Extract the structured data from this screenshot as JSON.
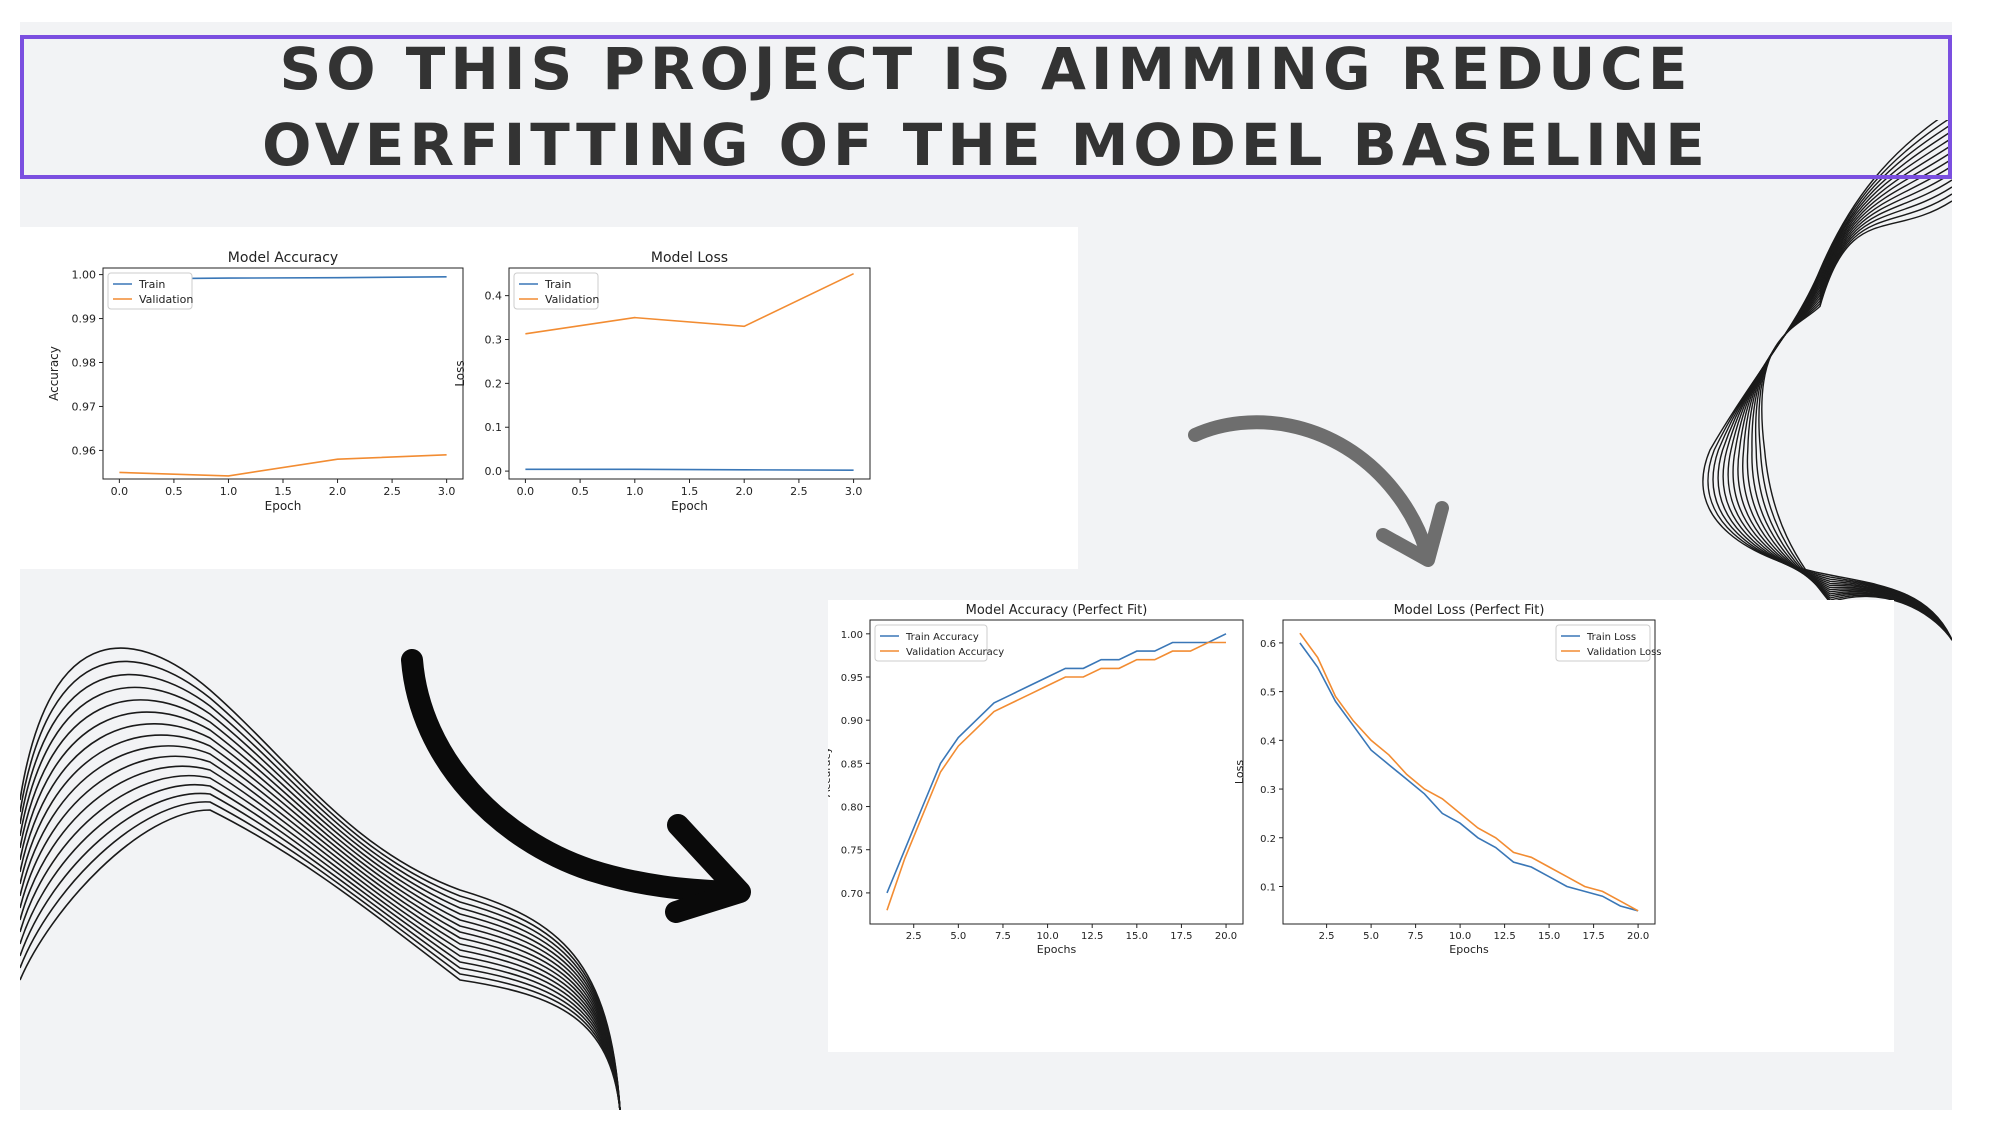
{
  "slide": {
    "title": "SO THIS PROJECT IS AIMMING REDUCE OVERFITTING OF THE MODEL BASELINE",
    "colors": {
      "accent_border": "#7b4fe0",
      "background": "#f2f3f5",
      "title_text": "#333333"
    }
  },
  "decorations": {
    "arrow_right_top": "curved-arrow-gray-icon",
    "arrow_left_bottom": "curved-arrow-black-icon",
    "wave_lines_right": "wave-lines-decoration",
    "wave_lines_left": "wave-lines-decoration"
  },
  "chart_data": [
    {
      "type": "line",
      "title": "Model Accuracy",
      "xlabel": "Epoch",
      "ylabel": "Accuracy",
      "xlim": [
        -0.15,
        3.15
      ],
      "ylim": [
        0.9535,
        1.0015
      ],
      "xticks": [
        0.0,
        0.5,
        1.0,
        1.5,
        2.0,
        2.5,
        3.0
      ],
      "xtick_labels": [
        "0.0",
        "0.5",
        "1.0",
        "1.5",
        "2.0",
        "2.5",
        "3.0"
      ],
      "yticks": [
        0.96,
        0.97,
        0.98,
        0.99,
        1.0
      ],
      "ytick_labels": [
        "0.96",
        "0.97",
        "0.98",
        "0.99",
        "1.00"
      ],
      "legend_position": "top-left",
      "grid": false,
      "series": [
        {
          "name": "Train",
          "color": "#3a77b7",
          "x": [
            0,
            1,
            2,
            3
          ],
          "values": [
            0.999,
            0.9992,
            0.9993,
            0.9995
          ]
        },
        {
          "name": "Validation",
          "color": "#f28c32",
          "x": [
            0,
            1,
            2,
            3
          ],
          "values": [
            0.955,
            0.9542,
            0.958,
            0.959
          ]
        }
      ]
    },
    {
      "type": "line",
      "title": "Model Loss",
      "xlabel": "Epoch",
      "ylabel": "Loss",
      "xlim": [
        -0.15,
        3.15
      ],
      "ylim": [
        -0.018,
        0.463
      ],
      "xticks": [
        0.0,
        0.5,
        1.0,
        1.5,
        2.0,
        2.5,
        3.0
      ],
      "xtick_labels": [
        "0.0",
        "0.5",
        "1.0",
        "1.5",
        "2.0",
        "2.5",
        "3.0"
      ],
      "yticks": [
        0.0,
        0.1,
        0.2,
        0.3,
        0.4
      ],
      "ytick_labels": [
        "0.0",
        "0.1",
        "0.2",
        "0.3",
        "0.4"
      ],
      "legend_position": "top-left",
      "grid": false,
      "series": [
        {
          "name": "Train",
          "color": "#3a77b7",
          "x": [
            0,
            1,
            2,
            3
          ],
          "values": [
            0.004,
            0.004,
            0.003,
            0.002
          ]
        },
        {
          "name": "Validation",
          "color": "#f28c32",
          "x": [
            0,
            1,
            2,
            3
          ],
          "values": [
            0.313,
            0.35,
            0.33,
            0.45
          ]
        }
      ]
    },
    {
      "type": "line",
      "title": "Model Accuracy (Perfect Fit)",
      "xlabel": "Epochs",
      "ylabel": "Accuracy",
      "xlim": [
        0.05,
        20.95
      ],
      "ylim": [
        0.664,
        1.016
      ],
      "xticks": [
        2.5,
        5.0,
        7.5,
        10.0,
        12.5,
        15.0,
        17.5,
        20.0
      ],
      "xtick_labels": [
        "2.5",
        "5.0",
        "7.5",
        "10.0",
        "12.5",
        "15.0",
        "17.5",
        "20.0"
      ],
      "yticks": [
        0.7,
        0.75,
        0.8,
        0.85,
        0.9,
        0.95,
        1.0
      ],
      "ytick_labels": [
        "0.70",
        "0.75",
        "0.80",
        "0.85",
        "0.90",
        "0.95",
        "1.00"
      ],
      "legend_position": "top-left",
      "grid": false,
      "series": [
        {
          "name": "Train Accuracy",
          "color": "#3a77b7",
          "x": [
            1,
            2,
            3,
            4,
            5,
            6,
            7,
            8,
            9,
            10,
            11,
            12,
            13,
            14,
            15,
            16,
            17,
            18,
            19,
            20
          ],
          "values": [
            0.7,
            0.75,
            0.8,
            0.85,
            0.88,
            0.9,
            0.92,
            0.93,
            0.94,
            0.95,
            0.96,
            0.96,
            0.97,
            0.97,
            0.98,
            0.98,
            0.99,
            0.99,
            0.99,
            1.0
          ]
        },
        {
          "name": "Validation Accuracy",
          "color": "#f28c32",
          "x": [
            1,
            2,
            3,
            4,
            5,
            6,
            7,
            8,
            9,
            10,
            11,
            12,
            13,
            14,
            15,
            16,
            17,
            18,
            19,
            20
          ],
          "values": [
            0.68,
            0.74,
            0.79,
            0.84,
            0.87,
            0.89,
            0.91,
            0.92,
            0.93,
            0.94,
            0.95,
            0.95,
            0.96,
            0.96,
            0.97,
            0.97,
            0.98,
            0.98,
            0.99,
            0.99
          ]
        }
      ]
    },
    {
      "type": "line",
      "title": "Model Loss (Perfect Fit)",
      "xlabel": "Epochs",
      "ylabel": "Loss",
      "xlim": [
        0.05,
        20.95
      ],
      "ylim": [
        0.023,
        0.647
      ],
      "xticks": [
        2.5,
        5.0,
        7.5,
        10.0,
        12.5,
        15.0,
        17.5,
        20.0
      ],
      "xtick_labels": [
        "2.5",
        "5.0",
        "7.5",
        "10.0",
        "12.5",
        "15.0",
        "17.5",
        "20.0"
      ],
      "yticks": [
        0.1,
        0.2,
        0.3,
        0.4,
        0.5,
        0.6
      ],
      "ytick_labels": [
        "0.1",
        "0.2",
        "0.3",
        "0.4",
        "0.5",
        "0.6"
      ],
      "legend_position": "top-right",
      "grid": false,
      "series": [
        {
          "name": "Train Loss",
          "color": "#3a77b7",
          "x": [
            1,
            2,
            3,
            4,
            5,
            6,
            7,
            8,
            9,
            10,
            11,
            12,
            13,
            14,
            15,
            16,
            17,
            18,
            19,
            20
          ],
          "values": [
            0.6,
            0.55,
            0.48,
            0.43,
            0.38,
            0.35,
            0.32,
            0.29,
            0.25,
            0.23,
            0.2,
            0.18,
            0.15,
            0.14,
            0.12,
            0.1,
            0.09,
            0.08,
            0.06,
            0.05
          ]
        },
        {
          "name": "Validation Loss",
          "color": "#f28c32",
          "x": [
            1,
            2,
            3,
            4,
            5,
            6,
            7,
            8,
            9,
            10,
            11,
            12,
            13,
            14,
            15,
            16,
            17,
            18,
            19,
            20
          ],
          "values": [
            0.62,
            0.57,
            0.49,
            0.44,
            0.4,
            0.37,
            0.33,
            0.3,
            0.28,
            0.25,
            0.22,
            0.2,
            0.17,
            0.16,
            0.14,
            0.12,
            0.1,
            0.09,
            0.07,
            0.05
          ]
        }
      ]
    }
  ]
}
